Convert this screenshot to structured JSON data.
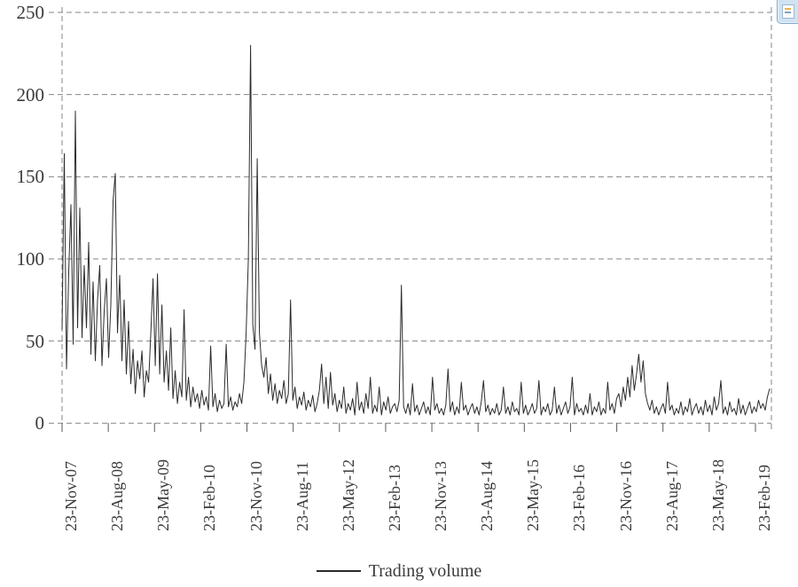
{
  "chart_data": {
    "type": "line",
    "title": "",
    "xlabel": "",
    "ylabel": "",
    "ylim": [
      0,
      250
    ],
    "y_ticks": [
      0,
      50,
      100,
      150,
      200,
      250
    ],
    "x_ticks": [
      "23-Nov-07",
      "23-Aug-08",
      "23-May-09",
      "23-Feb-10",
      "23-Nov-10",
      "23-Aug-11",
      "23-May-12",
      "23-Feb-13",
      "23-Nov-13",
      "23-Aug-14",
      "23-May-15",
      "23-Feb-16",
      "23-Nov-16",
      "23-Aug-17",
      "23-May-18",
      "23-Feb-19"
    ],
    "grid": "dashed horizontal gridlines at every 50; dashed vertical frame at left and right plot edges; legend bottom-center",
    "line_color": "#2b2b2b",
    "grid_color": "#848484",
    "legend": {
      "label": "Trading volume"
    },
    "series": [
      {
        "name": "Trading volume",
        "note": "daily trading volume sampled ~every 10 trading days from 23-Nov-07 through ~Apr-19; peaks: 190 (Jan-08), 152 (Sep-08), 230 and 161 (Nov-10), 84 (Mar-13), 42 (Jan-17)",
        "values": [
          57,
          164,
          33,
          92,
          133,
          48,
          190,
          58,
          131,
          52,
          96,
          58,
          110,
          42,
          86,
          38,
          75,
          96,
          35,
          68,
          88,
          40,
          72,
          135,
          152,
          55,
          90,
          38,
          75,
          30,
          62,
          24,
          45,
          18,
          38,
          27,
          44,
          16,
          32,
          25,
          55,
          88,
          35,
          91,
          30,
          72,
          25,
          44,
          20,
          58,
          15,
          32,
          12,
          25,
          16,
          69,
          14,
          28,
          10,
          22,
          13,
          18,
          9,
          20,
          11,
          16,
          8,
          47,
          10,
          18,
          7,
          14,
          9,
          12,
          48,
          10,
          16,
          8,
          13,
          10,
          18,
          12,
          25,
          55,
          100,
          230,
          60,
          45,
          161,
          55,
          35,
          28,
          40,
          18,
          30,
          14,
          24,
          12,
          20,
          15,
          26,
          12,
          18,
          75,
          14,
          22,
          9,
          16,
          11,
          19,
          8,
          14,
          10,
          17,
          7,
          12,
          20,
          36,
          12,
          28,
          9,
          31,
          11,
          18,
          7,
          14,
          9,
          22,
          6,
          12,
          8,
          15,
          5,
          25,
          8,
          13,
          6,
          18,
          9,
          28,
          6,
          11,
          7,
          22,
          5,
          13,
          8,
          16,
          6,
          10,
          12,
          7,
          14,
          84,
          10,
          6,
          12,
          5,
          24,
          7,
          11,
          5,
          9,
          13,
          6,
          10,
          5,
          28,
          8,
          12,
          6,
          9,
          5,
          11,
          33,
          7,
          13,
          5,
          10,
          6,
          25,
          8,
          11,
          5,
          9,
          12,
          6,
          10,
          5,
          13,
          26,
          7,
          11,
          5,
          9,
          6,
          12,
          5,
          8,
          22,
          6,
          10,
          5,
          13,
          7,
          9,
          5,
          25,
          6,
          11,
          5,
          8,
          12,
          6,
          9,
          26,
          5,
          10,
          7,
          12,
          5,
          8,
          22,
          6,
          11,
          5,
          9,
          13,
          6,
          10,
          28,
          5,
          12,
          7,
          9,
          5,
          11,
          6,
          18,
          5,
          10,
          7,
          13,
          5,
          9,
          6,
          25,
          8,
          12,
          6,
          15,
          18,
          10,
          22,
          14,
          28,
          16,
          35,
          20,
          30,
          42,
          25,
          38,
          18,
          12,
          8,
          14,
          6,
          10,
          5,
          9,
          12,
          6,
          25,
          8,
          11,
          5,
          9,
          6,
          13,
          5,
          10,
          7,
          15,
          5,
          9,
          12,
          6,
          10,
          5,
          14,
          7,
          11,
          5,
          16,
          8,
          12,
          26,
          6,
          10,
          5,
          13,
          7,
          9,
          5,
          15,
          6,
          11,
          5,
          9,
          13,
          6,
          10,
          7,
          14,
          9,
          12,
          8,
          16,
          21
        ]
      }
    ]
  },
  "ui": {
    "corner_button": "partially-visible-blue-icon-button"
  }
}
